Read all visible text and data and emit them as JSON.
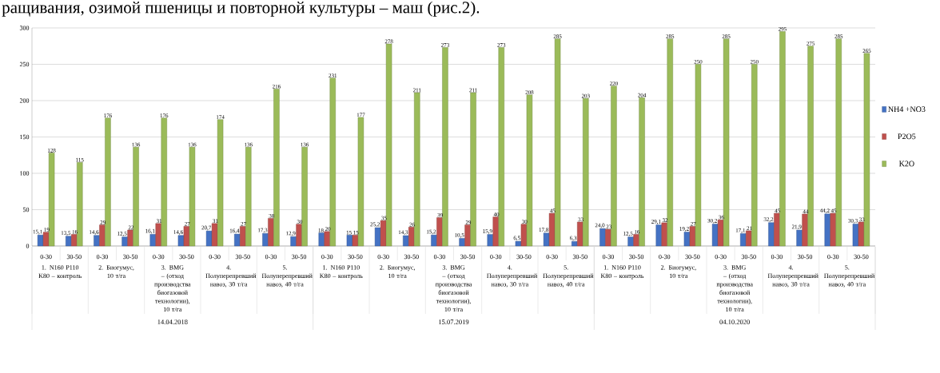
{
  "chart_data": {
    "type": "bar",
    "title": "ращивания, озимой пшеницы и повторной культуры – маш (рис.2).",
    "categories": [
      "0-30",
      "30-50",
      "0-30",
      "30-50",
      "0-30",
      "30-50",
      "0-30",
      "30-50",
      "0-30",
      "30-50",
      "0-30",
      "30-50",
      "0-30",
      "30-50",
      "0-30",
      "30-50",
      "0-30",
      "30-50",
      "0-30",
      "30-50",
      "0-30",
      "30-50",
      "0-30",
      "30-50",
      "0-30",
      "30-50",
      "0-30",
      "30-50",
      "0-30",
      "30-50"
    ],
    "series": [
      {
        "name": "NH4 +NO3",
        "color": "#4472c4",
        "values": [
          15.1,
          13.5,
          14.6,
          12.5,
          16.1,
          14.6,
          20.7,
          16.4,
          17.3,
          12.9,
          18,
          15,
          25.2,
          14.3,
          15.2,
          10.5,
          15.9,
          6.5,
          17.8,
          6.3,
          24.0,
          12.5,
          29.1,
          19.2,
          30.2,
          17.1,
          32.2,
          21.9,
          44.2,
          30.3
        ],
        "value_labels": [
          "15,1",
          "13,5",
          "14,6",
          "12,5",
          "16,1",
          "14,6",
          "20,7",
          "16,4",
          "17,3",
          "12,9",
          "18",
          "15",
          "25,2",
          "14,3",
          "15,2",
          "10,5",
          "15,9",
          "6,5",
          "17,8",
          "6,3",
          "24,0",
          "12,5",
          "29,1",
          "19,2",
          "30,2",
          "17,1",
          "32,2",
          "21,9",
          "44,2",
          "30,3"
        ]
      },
      {
        "name": "P2O5",
        "color": "#c0504d",
        "values": [
          19,
          16,
          29,
          22,
          31,
          27,
          31,
          27,
          38,
          30,
          20,
          15,
          35,
          26,
          39,
          29,
          40,
          30,
          45,
          33,
          23,
          16,
          32,
          27,
          36,
          21,
          45,
          44,
          45,
          33
        ],
        "value_labels": [
          "19",
          "16",
          "29",
          "22",
          "31",
          "27",
          "31",
          "27",
          "38",
          "30",
          "20",
          "15",
          "35",
          "26",
          "39",
          "29",
          "40",
          "30",
          "45",
          "33",
          "23",
          "16",
          "32",
          "27",
          "36",
          "21",
          "45",
          "44",
          "45",
          "33"
        ]
      },
      {
        "name": "K2O",
        "color": "#9bbb59",
        "values": [
          128,
          115,
          176,
          136,
          176,
          136,
          174,
          136,
          216,
          136,
          231,
          177,
          278,
          211,
          273,
          211,
          273,
          208,
          285,
          203,
          220,
          204,
          285,
          250,
          285,
          250,
          295,
          275,
          285,
          265
        ],
        "value_labels": [
          "128",
          "115",
          "176",
          "136",
          "176",
          "136",
          "174",
          "136",
          "216",
          "136",
          "231",
          "177",
          "278",
          "211",
          "273",
          "211",
          "273",
          "208",
          "285",
          "203",
          "220",
          "204",
          "285",
          "250",
          "285",
          "250",
          "295",
          "275",
          "285",
          "265"
        ]
      }
    ],
    "annotations": [
      "1. N160 P110 K80 – контроль",
      "2. Биогумус, 10 т/га",
      "3. BMG – (отход производства биогазовой технологии), 10 т/га",
      "4. Полуперепревший навоз, 30 т/га",
      "5. Полуперепревший навоз, 40 т/га",
      "1. N160 P110 K80 – контроль",
      "2. Биогумус, 10 т/га",
      "3. BMG – (отход производства биогазовой технологии), 10 т/га",
      "4. Полуперепревший навоз, 30 т/га",
      "5. Полуперепревший навоз, 40 т/га",
      "1. N160 P110 K80 – контроль",
      "2. Биогумус, 10 т/га",
      "3. BMG – (отход производства биогазовой технологии), 10 т/га",
      "4. Полуперепревший навоз, 30 т/га",
      "5. Полуперепревший навоз, 40 т/га",
      "14.04.2018",
      "15.07.2019",
      "04.10.2020"
    ],
    "ylim": [
      0,
      300
    ],
    "yticks": [
      0,
      50,
      100,
      150,
      200,
      250,
      300
    ],
    "grid": "y",
    "legend": "right"
  }
}
